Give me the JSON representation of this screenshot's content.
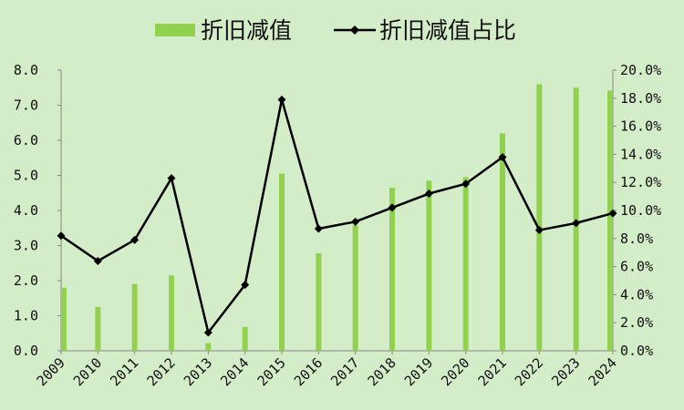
{
  "chart_data": {
    "type": "bar",
    "categories": [
      "2009",
      "2010",
      "2011",
      "2012",
      "2013",
      "2014",
      "2015",
      "2016",
      "2017",
      "2018",
      "2019",
      "2020",
      "2021",
      "2022",
      "2023",
      "2024"
    ],
    "series": [
      {
        "name": "折旧减值",
        "type": "bar",
        "axis": "left",
        "color": "#92d050",
        "values": [
          1.8,
          1.25,
          1.9,
          2.15,
          0.22,
          0.68,
          5.05,
          2.78,
          3.58,
          4.65,
          4.85,
          4.95,
          6.2,
          7.6,
          7.5,
          7.42
        ]
      },
      {
        "name": "折旧减值占比",
        "type": "line",
        "axis": "right",
        "color": "#000000",
        "values": [
          8.2,
          6.4,
          7.9,
          12.3,
          1.3,
          4.7,
          17.9,
          8.7,
          9.2,
          10.2,
          11.2,
          11.9,
          13.8,
          8.6,
          9.1,
          9.8
        ]
      }
    ],
    "y_left": {
      "ylim": [
        0,
        8
      ],
      "ticks": [
        "0.0",
        "1.0",
        "2.0",
        "3.0",
        "4.0",
        "5.0",
        "6.0",
        "7.0",
        "8.0"
      ]
    },
    "y_right": {
      "ylim": [
        0,
        20
      ],
      "ticks": [
        "0.0%",
        "2.0%",
        "4.0%",
        "6.0%",
        "8.0%",
        "10.0%",
        "12.0%",
        "14.0%",
        "16.0%",
        "18.0%",
        "20.0%"
      ]
    },
    "grid": false,
    "legend": "top"
  }
}
